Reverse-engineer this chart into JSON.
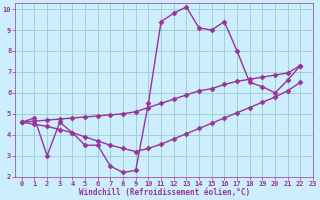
{
  "background_color": "#cceeff",
  "grid_color": "#99cccc",
  "line_color": "#993399",
  "marker": "D",
  "markersize": 2.5,
  "linewidth": 1.0,
  "xlim": [
    -0.5,
    23
  ],
  "ylim": [
    2,
    10.3
  ],
  "xticks": [
    0,
    1,
    2,
    3,
    4,
    5,
    6,
    7,
    8,
    9,
    10,
    11,
    12,
    13,
    14,
    15,
    16,
    17,
    18,
    19,
    20,
    21,
    22,
    23
  ],
  "yticks": [
    2,
    3,
    4,
    5,
    6,
    7,
    8,
    9,
    10
  ],
  "xlabel": "Windchill (Refroidissement éolien,°C)",
  "xlabel_fontsize": 5.5,
  "tick_fontsize": 5.0,
  "series": [
    {
      "x": [
        0,
        1,
        2,
        3,
        4,
        5,
        6,
        7,
        8,
        9,
        10,
        11,
        12,
        13,
        14,
        15,
        16,
        17,
        18,
        19,
        20,
        21,
        22
      ],
      "y": [
        4.6,
        4.8,
        3.0,
        4.6,
        4.1,
        3.5,
        3.5,
        2.5,
        2.2,
        2.3,
        5.5,
        9.4,
        9.8,
        10.1,
        9.1,
        9.0,
        9.4,
        8.0,
        6.5,
        6.3,
        6.0,
        6.6,
        7.3
      ]
    },
    {
      "x": [
        0,
        1,
        2,
        3,
        4,
        5,
        6,
        7,
        8,
        9,
        10,
        11,
        12,
        13,
        14,
        15,
        16,
        17,
        18,
        19,
        20,
        21,
        22
      ],
      "y": [
        4.6,
        4.65,
        4.7,
        4.75,
        4.8,
        4.85,
        4.9,
        4.95,
        5.0,
        5.1,
        5.3,
        5.5,
        5.7,
        5.9,
        6.1,
        6.2,
        6.4,
        6.55,
        6.65,
        6.75,
        6.85,
        6.95,
        7.3
      ]
    },
    {
      "x": [
        0,
        1,
        2,
        3,
        4,
        5,
        6,
        7,
        8,
        9,
        10,
        11,
        12,
        13,
        14,
        15,
        16,
        17,
        18,
        19,
        20,
        21,
        22
      ],
      "y": [
        4.6,
        4.5,
        4.4,
        4.25,
        4.1,
        3.9,
        3.7,
        3.5,
        3.35,
        3.2,
        3.35,
        3.55,
        3.8,
        4.05,
        4.3,
        4.55,
        4.8,
        5.05,
        5.3,
        5.55,
        5.8,
        6.1,
        6.5
      ]
    }
  ]
}
